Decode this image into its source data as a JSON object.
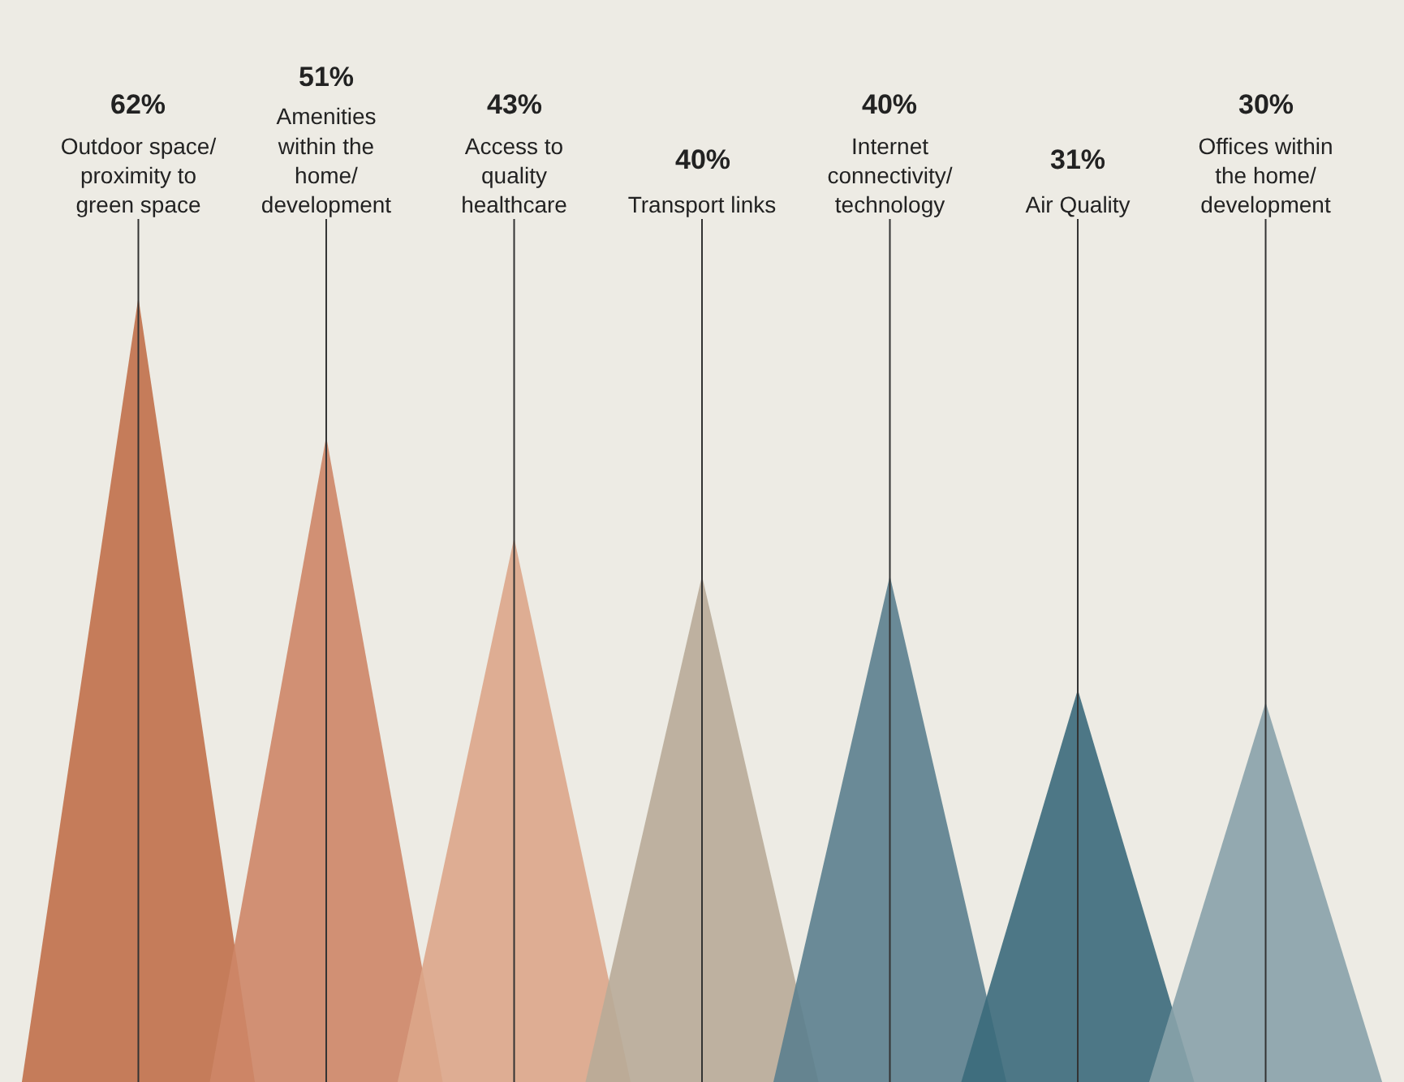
{
  "chart_data": {
    "type": "other",
    "categories": [
      "Outdoor space/ proximity to green space",
      "Amenities within the home/ development",
      "Access to quality healthcare",
      "Transport links",
      "Internet connectivity/ technology",
      "Air Quality",
      "Offices within the home/ development"
    ],
    "values": [
      62,
      51,
      43,
      40,
      40,
      31,
      30
    ],
    "value_labels": [
      "62%",
      "51%",
      "43%",
      "40%",
      "40%",
      "31%",
      "30%"
    ],
    "colors": [
      "#c0704a",
      "#cd8667",
      "#dca68a",
      "#b8ab98",
      "#5b7f8e",
      "#3b6a7b",
      "#88a2aa"
    ]
  }
}
